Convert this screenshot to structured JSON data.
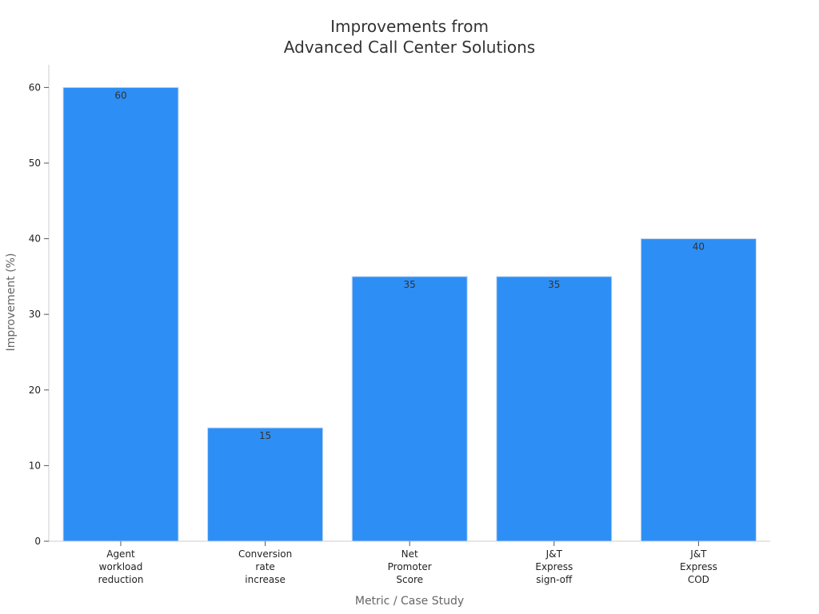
{
  "chart_data": {
    "type": "bar",
    "title_lines": [
      "Improvements from",
      "Advanced Call Center Solutions"
    ],
    "xlabel": "Metric / Case Study",
    "ylabel": "Improvement (%)",
    "ylim": [
      0,
      63
    ],
    "yticks": [
      0,
      10,
      20,
      30,
      40,
      50,
      60
    ],
    "grid": false,
    "legend": "none",
    "bar_color": "#2d8ff5",
    "categories": [
      [
        "Agent",
        "workload",
        "reduction"
      ],
      [
        "Conversion",
        "rate",
        "increase"
      ],
      [
        "Net",
        "Promoter",
        "Score"
      ],
      [
        "J&T",
        "Express",
        "sign-off"
      ],
      [
        "J&T",
        "Express",
        "COD"
      ]
    ],
    "values": [
      60,
      15,
      35,
      35,
      40
    ]
  }
}
